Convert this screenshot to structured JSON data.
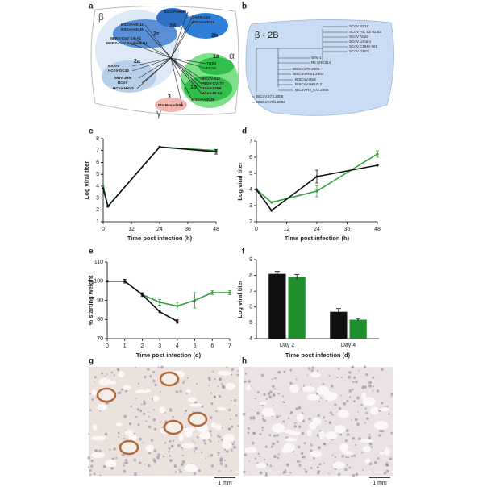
{
  "panels": [
    "a",
    "b",
    "c",
    "d",
    "e",
    "f",
    "g",
    "h"
  ],
  "tree_a": {
    "groups": [
      "β",
      "α",
      "γ"
    ],
    "clades": [
      "2c",
      "2d",
      "2b",
      "2a",
      "1a",
      "1b",
      "3"
    ],
    "strains": [
      "BtCoV-HKU4",
      "BtCoV-HKU5",
      "MERS-CoV SA-A1",
      "MERS-CoV England-N1",
      "BtCoV-HKU9",
      "SARS-CoV",
      "BtCoV-HKU3",
      "BtCoV",
      "HCoV-OC43",
      "MHV-JHM",
      "BCoV",
      "HCoV-HKU1",
      "IBV-Beaudette",
      "TGEV",
      "FCoV",
      "BtCoV-512",
      "PEDV-CV777",
      "HCoV-229E",
      "HCoV-NL63",
      "BtCoV-HKU8"
    ]
  },
  "tree_b": {
    "title": "β - 2B",
    "strains": [
      "SCoV SZ16",
      "SCoV HC SZ 61.03",
      "SCoV A022",
      "SCoV Urbani",
      "SCoV CUHK-W1",
      "SCoV GD01",
      "WIV-1",
      "Rs SHC014",
      "BtCoV.279.2005",
      "BtSCoV.Rm1.2004",
      "BtSCoV.Rp3",
      "BtSCoV.HKU3.2",
      "BtCoV.Rs_672.2006",
      "BtCoV.273.2005",
      "BtSCoV.Rf1.2004"
    ]
  },
  "images": [
    {
      "scale_bar": "1 mm"
    },
    {
      "scale_bar": "1 mm"
    }
  ],
  "chart_data": [
    {
      "type": "line",
      "xlabel": "Time post infection (h)",
      "ylabel": "Log viral titer",
      "xlim": [
        0,
        48
      ],
      "xticks": [
        0,
        12,
        24,
        36,
        48
      ],
      "ylim": [
        1,
        8
      ],
      "yticks": [
        1,
        2,
        3,
        4,
        5,
        6,
        7,
        8
      ],
      "series": [
        {
          "color": "#2e9e3a",
          "x": [
            0,
            2,
            24,
            48
          ],
          "values": [
            4,
            2.3,
            7.3,
            7.0
          ]
        },
        {
          "color": "#111111",
          "x": [
            0,
            2,
            24,
            48
          ],
          "values": [
            3.8,
            2.3,
            7.3,
            6.9
          ],
          "errors": [
            null,
            null,
            null,
            0.2
          ]
        }
      ]
    },
    {
      "type": "line",
      "xlabel": "Time post infection (h)",
      "ylabel": "Log viral titer",
      "xlim": [
        0,
        48
      ],
      "xticks": [
        0,
        12,
        24,
        36,
        48
      ],
      "ylim": [
        2,
        7
      ],
      "yticks": [
        2,
        3,
        4,
        5,
        6,
        7
      ],
      "series": [
        {
          "color": "#2e9e3a",
          "x": [
            0,
            6,
            24,
            48
          ],
          "values": [
            4,
            3.2,
            3.9,
            6.2
          ],
          "errors": [
            null,
            null,
            0.35,
            0.2
          ]
        },
        {
          "color": "#111111",
          "x": [
            0,
            6,
            24,
            48
          ],
          "values": [
            4,
            2.7,
            4.8,
            5.5
          ],
          "errors": [
            null,
            null,
            0.4,
            null
          ]
        }
      ]
    },
    {
      "type": "line",
      "xlabel": "Time post infection (d)",
      "ylabel": "% starting weight",
      "xlim": [
        0,
        7
      ],
      "xticks": [
        0,
        1,
        2,
        3,
        4,
        5,
        6,
        7
      ],
      "ylim": [
        70,
        110
      ],
      "yticks": [
        70,
        80,
        90,
        100,
        110
      ],
      "series": [
        {
          "color": "#2e9e3a",
          "x": [
            0,
            1,
            2,
            3,
            4,
            5,
            6,
            7
          ],
          "values": [
            100,
            100,
            93,
            89,
            87,
            90,
            94,
            94
          ],
          "errors": [
            null,
            1,
            1,
            1.5,
            2,
            4,
            1,
            1
          ]
        },
        {
          "color": "#111111",
          "x": [
            0,
            1,
            2,
            3,
            4
          ],
          "values": [
            100,
            100,
            93,
            84,
            79
          ],
          "errors": [
            null,
            1,
            1,
            null,
            1
          ]
        }
      ]
    },
    {
      "type": "bar",
      "xlabel": "Time post infection (d)",
      "ylabel": "Log viral titer",
      "categories": [
        "Day 2",
        "Day 4"
      ],
      "ylim": [
        4,
        9
      ],
      "yticks": [
        4,
        5,
        6,
        7,
        8,
        9
      ],
      "series": [
        {
          "color": "#111111",
          "values": [
            8.1,
            5.7
          ],
          "errors": [
            0.15,
            0.2
          ]
        },
        {
          "color": "#1f8f2e",
          "values": [
            7.9,
            5.2
          ],
          "errors": [
            0.15,
            0.07
          ]
        }
      ]
    }
  ]
}
